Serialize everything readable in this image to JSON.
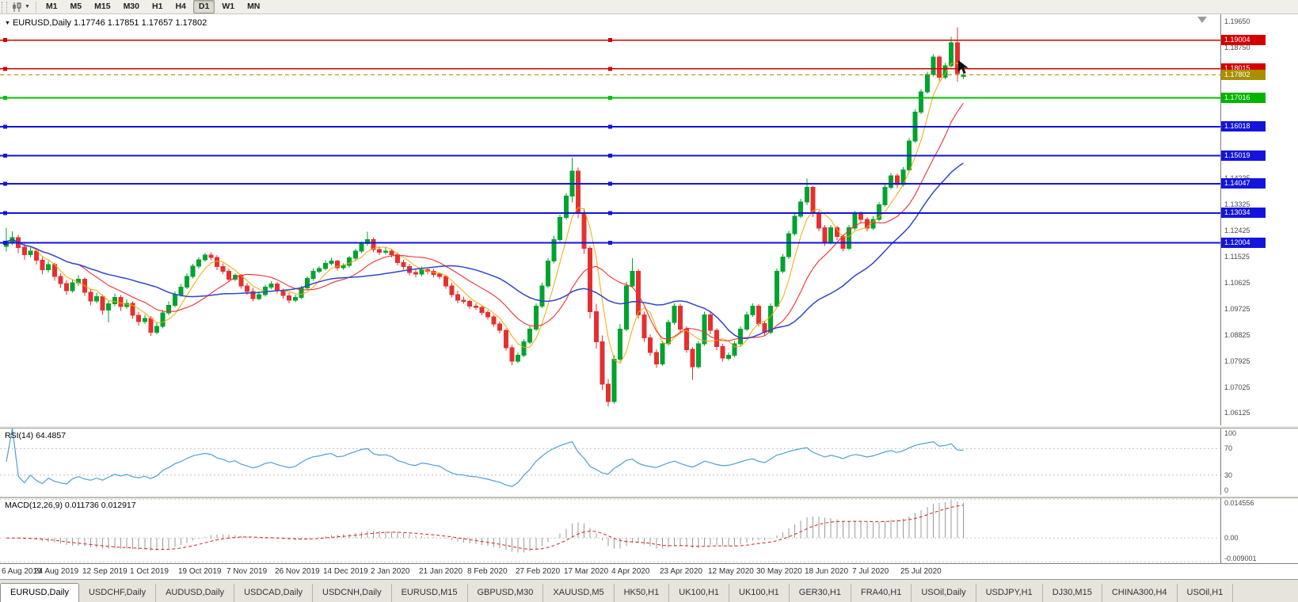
{
  "toolbar": {
    "timeframes": [
      "M1",
      "M5",
      "M15",
      "M30",
      "H1",
      "H4",
      "D1",
      "W1",
      "MN"
    ],
    "active_timeframe": "D1"
  },
  "chart": {
    "title": "EURUSD,Daily",
    "ohlc_readout": "1.17746 1.17851 1.17657 1.17802",
    "open": "1.17746",
    "high": "1.17851",
    "low": "1.17657",
    "close": "1.17802"
  },
  "colors": {
    "candle_up": "#00A32E",
    "candle_down": "#E53030",
    "ma_fast": "#F5A800",
    "ma_mid": "#F03030",
    "ma_slow": "#2E46C8",
    "rsi_line": "#4E9FD6",
    "macd_bars": "#9B9B9B",
    "macd_signal": "#D02020"
  },
  "price_scale": {
    "gray_ticks": [
      {
        "label": "1.19650",
        "value": 1.1965
      },
      {
        "label": "1.18750",
        "value": 1.1875
      },
      {
        "label": "1.14235",
        "value": 1.14235
      },
      {
        "label": "1.13325",
        "value": 1.13325
      },
      {
        "label": "1.12425",
        "value": 1.12425
      },
      {
        "label": "1.11525",
        "value": 1.11525
      },
      {
        "label": "1.10625",
        "value": 1.10625
      },
      {
        "label": "1.09725",
        "value": 1.09725
      },
      {
        "label": "1.08825",
        "value": 1.08825
      },
      {
        "label": "1.07925",
        "value": 1.07925
      },
      {
        "label": "1.07025",
        "value": 1.07025
      },
      {
        "label": "1.06125",
        "value": 1.06125
      }
    ]
  },
  "levels": [
    {
      "label": "1.19004",
      "value": 1.19004,
      "color": "#D40000",
      "box": "#D40000",
      "width": 1.4,
      "dashed": false
    },
    {
      "label": "1.18015",
      "value": 1.18015,
      "color": "#D40000",
      "box": "#D40000",
      "width": 1.4,
      "dashed": false
    },
    {
      "label": "1.17802",
      "value": 1.17802,
      "color": "#A89000",
      "box": "#A89000",
      "width": 1,
      "dashed": true
    },
    {
      "label": "1.17016",
      "value": 1.17016,
      "color": "#00C000",
      "box": "#00B400",
      "width": 1.8,
      "dashed": false
    },
    {
      "label": "1.16018",
      "value": 1.16018,
      "color": "#1414DC",
      "box": "#1414DC",
      "width": 1.8,
      "dashed": false
    },
    {
      "label": "1.15019",
      "value": 1.15019,
      "color": "#1414DC",
      "box": "#1414DC",
      "width": 1.8,
      "dashed": false
    },
    {
      "label": "1.14047",
      "value": 1.14047,
      "color": "#1414DC",
      "box": "#1414DC",
      "width": 1.8,
      "dashed": false
    },
    {
      "label": "1.13034",
      "value": 1.13034,
      "color": "#1414DC",
      "box": "#1414DC",
      "width": 1.8,
      "dashed": false
    },
    {
      "label": "1.12004",
      "value": 1.12004,
      "color": "#1414DC",
      "box": "#1414DC",
      "width": 1.8,
      "dashed": false
    }
  ],
  "chart_data": {
    "type": "candlestick",
    "symbol": "EURUSD",
    "timeframe": "Daily",
    "price_range": [
      1.057,
      1.199
    ],
    "x_labels": [
      "6 Aug 2019",
      "24 Aug 2019",
      "12 Sep 2019",
      "1 Oct 2019",
      "19 Oct 2019",
      "7 Nov 2019",
      "26 Nov 2019",
      "14 Dec 2019",
      "2 Jan 2020",
      "21 Jan 2020",
      "8 Feb 2020",
      "27 Feb 2020",
      "17 Mar 2020",
      "4 Apr 2020",
      "23 Apr 2020",
      "12 May 2020",
      "30 May 2020",
      "18 Jun 2020",
      "7 Jul 2020",
      "25 Jul 2020"
    ],
    "x_label_step": 8,
    "overlays": [
      {
        "name": "ma-fast",
        "period": 5,
        "color": "#F5A800"
      },
      {
        "name": "ma-mid",
        "period": 13,
        "color": "#F03030"
      },
      {
        "name": "ma-slow",
        "period": 26,
        "color": "#2E46C8"
      }
    ],
    "candles": [
      [
        1.1188,
        1.1252,
        1.117,
        1.1205
      ],
      [
        1.1205,
        1.124,
        1.1192,
        1.1218
      ],
      [
        1.1218,
        1.1228,
        1.1165,
        1.1185
      ],
      [
        1.1185,
        1.1198,
        1.1142,
        1.116
      ],
      [
        1.116,
        1.1185,
        1.115,
        1.1172
      ],
      [
        1.1172,
        1.118,
        1.1125,
        1.114
      ],
      [
        1.114,
        1.1152,
        1.1092,
        1.1108
      ],
      [
        1.1108,
        1.1138,
        1.1098,
        1.1125
      ],
      [
        1.1125,
        1.1132,
        1.107,
        1.1085
      ],
      [
        1.1085,
        1.1095,
        1.1045,
        1.106
      ],
      [
        1.106,
        1.1072,
        1.1022,
        1.1035
      ],
      [
        1.1035,
        1.1075,
        1.1028,
        1.1062
      ],
      [
        1.1062,
        1.1088,
        1.1052,
        1.1075
      ],
      [
        1.1075,
        1.1082,
        1.1018,
        1.103
      ],
      [
        1.103,
        1.1042,
        1.0985,
        1.1
      ],
      [
        1.1,
        1.1028,
        1.0992,
        1.1015
      ],
      [
        1.1015,
        1.1022,
        1.0952,
        1.0968
      ],
      [
        1.0968,
        1.1002,
        1.0926,
        1.099
      ],
      [
        1.099,
        1.1025,
        1.0982,
        1.1012
      ],
      [
        1.1012,
        1.102,
        1.0965,
        1.098
      ],
      [
        1.098,
        1.1005,
        1.0972,
        1.0992
      ],
      [
        1.0992,
        1.0998,
        1.0938,
        1.095
      ],
      [
        1.095,
        1.0962,
        1.0915,
        1.0928
      ],
      [
        1.0928,
        1.0952,
        1.092,
        1.094
      ],
      [
        1.094,
        1.0948,
        1.0879,
        1.0892
      ],
      [
        1.0892,
        1.0925,
        1.0885,
        1.0912
      ],
      [
        1.0912,
        1.0968,
        1.0905,
        1.0958
      ],
      [
        1.0958,
        1.0998,
        1.095,
        1.0985
      ],
      [
        1.0985,
        1.1032,
        1.0978,
        1.1022
      ],
      [
        1.1022,
        1.1058,
        1.1015,
        1.1048
      ],
      [
        1.1048,
        1.1095,
        1.104,
        1.1085
      ],
      [
        1.1085,
        1.1128,
        1.1078,
        1.112
      ],
      [
        1.112,
        1.1152,
        1.1112,
        1.1142
      ],
      [
        1.1142,
        1.1165,
        1.1135,
        1.1158
      ],
      [
        1.1158,
        1.1168,
        1.114,
        1.115
      ],
      [
        1.115,
        1.1158,
        1.1106,
        1.1118
      ],
      [
        1.1118,
        1.113,
        1.1092,
        1.1102
      ],
      [
        1.1102,
        1.1112,
        1.1065,
        1.1075
      ],
      [
        1.1075,
        1.1095,
        1.1068,
        1.1088
      ],
      [
        1.1088,
        1.1092,
        1.1042,
        1.1052
      ],
      [
        1.1052,
        1.1062,
        1.1022,
        1.1032
      ],
      [
        1.1032,
        1.1045,
        1.0998,
        1.1008
      ],
      [
        1.1008,
        1.1032,
        1.1002,
        1.1022
      ],
      [
        1.1022,
        1.1055,
        1.1015,
        1.1048
      ],
      [
        1.1048,
        1.1068,
        1.104,
        1.1058
      ],
      [
        1.1058,
        1.1065,
        1.1025,
        1.1035
      ],
      [
        1.1035,
        1.1042,
        1.1008,
        1.1018
      ],
      [
        1.1018,
        1.1028,
        1.0992,
        1.1002
      ],
      [
        1.1002,
        1.1022,
        1.0995,
        1.1012
      ],
      [
        1.1012,
        1.1052,
        1.1005,
        1.1045
      ],
      [
        1.1045,
        1.1085,
        1.1038,
        1.1078
      ],
      [
        1.1078,
        1.1112,
        1.107,
        1.1102
      ],
      [
        1.1102,
        1.112,
        1.1095,
        1.1112
      ],
      [
        1.1112,
        1.114,
        1.1105,
        1.113
      ],
      [
        1.113,
        1.1148,
        1.1122,
        1.1138
      ],
      [
        1.1138,
        1.1142,
        1.1105,
        1.1115
      ],
      [
        1.1115,
        1.113,
        1.1108,
        1.1122
      ],
      [
        1.1122,
        1.1155,
        1.1115,
        1.1148
      ],
      [
        1.1148,
        1.118,
        1.114,
        1.1172
      ],
      [
        1.1172,
        1.1205,
        1.1165,
        1.1198
      ],
      [
        1.1198,
        1.1239,
        1.119,
        1.1212
      ],
      [
        1.1212,
        1.1218,
        1.1168,
        1.1178
      ],
      [
        1.1178,
        1.1188,
        1.1158,
        1.1168
      ],
      [
        1.1168,
        1.1185,
        1.116,
        1.1172
      ],
      [
        1.1172,
        1.118,
        1.115,
        1.116
      ],
      [
        1.116,
        1.1168,
        1.1122,
        1.1132
      ],
      [
        1.1132,
        1.1142,
        1.1108,
        1.1118
      ],
      [
        1.1118,
        1.1128,
        1.1088,
        1.1098
      ],
      [
        1.1098,
        1.1108,
        1.1082,
        1.1092
      ],
      [
        1.1092,
        1.1118,
        1.1085,
        1.1108
      ],
      [
        1.1108,
        1.1115,
        1.1092,
        1.1102
      ],
      [
        1.1102,
        1.111,
        1.1082,
        1.1092
      ],
      [
        1.1092,
        1.1098,
        1.1075,
        1.1085
      ],
      [
        1.1085,
        1.109,
        1.1042,
        1.1052
      ],
      [
        1.1052,
        1.1062,
        1.1012,
        1.1022
      ],
      [
        1.1022,
        1.1035,
        1.0992,
        1.1002
      ],
      [
        1.1002,
        1.1015,
        1.099,
        1.0998
      ],
      [
        1.0998,
        1.1005,
        1.0972,
        1.0982
      ],
      [
        1.0982,
        1.0992,
        1.0968,
        1.0978
      ],
      [
        1.0978,
        1.0985,
        1.095,
        1.096
      ],
      [
        1.096,
        1.0968,
        1.0935,
        1.0945
      ],
      [
        1.0945,
        1.0952,
        1.091,
        1.092
      ],
      [
        1.092,
        1.093,
        1.0888,
        1.0898
      ],
      [
        1.0898,
        1.0905,
        1.0828,
        1.0838
      ],
      [
        1.0838,
        1.0848,
        1.0778,
        1.0792
      ],
      [
        1.0792,
        1.0822,
        1.0785,
        1.0812
      ],
      [
        1.0812,
        1.0868,
        1.0805,
        1.0858
      ],
      [
        1.0858,
        1.0912,
        1.085,
        1.0902
      ],
      [
        1.0902,
        1.0992,
        1.0895,
        1.0982
      ],
      [
        1.0982,
        1.1062,
        1.0975,
        1.1052
      ],
      [
        1.1052,
        1.1148,
        1.1045,
        1.1138
      ],
      [
        1.1138,
        1.1225,
        1.113,
        1.1212
      ],
      [
        1.1212,
        1.1298,
        1.1205,
        1.1288
      ],
      [
        1.1288,
        1.1372,
        1.128,
        1.1362
      ],
      [
        1.1362,
        1.1495,
        1.134,
        1.1448
      ],
      [
        1.1448,
        1.146,
        1.1285,
        1.1302
      ],
      [
        1.1302,
        1.132,
        1.1162,
        1.1182
      ],
      [
        1.1182,
        1.119,
        1.094,
        1.0962
      ],
      [
        1.0962,
        1.099,
        1.0835,
        1.0858
      ],
      [
        1.0858,
        1.088,
        1.0692,
        1.0712
      ],
      [
        1.0712,
        1.073,
        1.0636,
        1.0652
      ],
      [
        1.0652,
        1.0812,
        1.0645,
        1.0798
      ],
      [
        1.0798,
        1.092,
        1.079,
        1.0902
      ],
      [
        1.0902,
        1.1065,
        1.0895,
        1.1052
      ],
      [
        1.1052,
        1.1147,
        1.1045,
        1.1102
      ],
      [
        1.1102,
        1.111,
        1.0938,
        1.0952
      ],
      [
        1.0952,
        1.0962,
        1.0858,
        1.0872
      ],
      [
        1.0872,
        1.0885,
        1.081,
        1.0822
      ],
      [
        1.0822,
        1.0832,
        1.0768,
        1.0782
      ],
      [
        1.0782,
        1.0862,
        1.0775,
        1.0852
      ],
      [
        1.0852,
        1.0935,
        1.0845,
        1.0925
      ],
      [
        1.0925,
        1.0992,
        1.0918,
        1.0982
      ],
      [
        1.0982,
        1.099,
        1.0888,
        1.0902
      ],
      [
        1.0902,
        1.0912,
        1.082,
        1.0832
      ],
      [
        1.0832,
        1.084,
        1.0727,
        1.0772
      ],
      [
        1.0772,
        1.0862,
        1.0765,
        1.0852
      ],
      [
        1.0852,
        1.0962,
        1.0845,
        1.0952
      ],
      [
        1.0952,
        1.096,
        1.0885,
        1.0898
      ],
      [
        1.0898,
        1.0905,
        1.083,
        1.0842
      ],
      [
        1.0842,
        1.0852,
        1.079,
        1.0802
      ],
      [
        1.0802,
        1.0822,
        1.0795,
        1.0812
      ],
      [
        1.0812,
        1.0862,
        1.0805,
        1.0852
      ],
      [
        1.0852,
        1.0912,
        1.0845,
        1.0902
      ],
      [
        1.0902,
        1.0962,
        1.0895,
        1.0952
      ],
      [
        1.0952,
        1.0992,
        1.0945,
        1.0982
      ],
      [
        1.0982,
        1.0988,
        1.091,
        1.0922
      ],
      [
        1.0922,
        1.093,
        1.088,
        1.0892
      ],
      [
        1.0892,
        1.0992,
        1.0885,
        1.0982
      ],
      [
        1.0982,
        1.1112,
        1.0975,
        1.1102
      ],
      [
        1.1102,
        1.1162,
        1.1095,
        1.1152
      ],
      [
        1.1152,
        1.1242,
        1.1145,
        1.1232
      ],
      [
        1.1232,
        1.1302,
        1.1225,
        1.1292
      ],
      [
        1.1292,
        1.1352,
        1.1285,
        1.1342
      ],
      [
        1.1342,
        1.1422,
        1.133,
        1.1392
      ],
      [
        1.1392,
        1.1398,
        1.129,
        1.1302
      ],
      [
        1.1302,
        1.1312,
        1.124,
        1.1252
      ],
      [
        1.1252,
        1.1262,
        1.119,
        1.1202
      ],
      [
        1.1202,
        1.1262,
        1.1195,
        1.1252
      ],
      [
        1.1252,
        1.126,
        1.121,
        1.1222
      ],
      [
        1.1222,
        1.123,
        1.117,
        1.1182
      ],
      [
        1.1182,
        1.1262,
        1.1175,
        1.1252
      ],
      [
        1.1252,
        1.1312,
        1.1245,
        1.1302
      ],
      [
        1.1302,
        1.131,
        1.127,
        1.1282
      ],
      [
        1.1282,
        1.129,
        1.124,
        1.1252
      ],
      [
        1.1252,
        1.1292,
        1.1245,
        1.1282
      ],
      [
        1.1282,
        1.1342,
        1.1275,
        1.1332
      ],
      [
        1.1332,
        1.1402,
        1.1325,
        1.1392
      ],
      [
        1.1392,
        1.1442,
        1.1385,
        1.1432
      ],
      [
        1.1432,
        1.144,
        1.139,
        1.1402
      ],
      [
        1.1402,
        1.1462,
        1.1395,
        1.1452
      ],
      [
        1.1452,
        1.1562,
        1.1445,
        1.1552
      ],
      [
        1.1552,
        1.1662,
        1.1545,
        1.1652
      ],
      [
        1.1652,
        1.1732,
        1.1645,
        1.1722
      ],
      [
        1.1722,
        1.1792,
        1.1715,
        1.1782
      ],
      [
        1.1782,
        1.1852,
        1.1775,
        1.1842
      ],
      [
        1.1842,
        1.1848,
        1.176,
        1.1772
      ],
      [
        1.1772,
        1.1822,
        1.1765,
        1.1812
      ],
      [
        1.1812,
        1.1912,
        1.1805,
        1.1892
      ],
      [
        1.1892,
        1.1945,
        1.1758,
        1.1785
      ],
      [
        1.17746,
        1.17851,
        1.17657,
        1.17802
      ]
    ]
  },
  "rsi": {
    "label": "RSI(14) 64.4857",
    "period": 14,
    "value": "64.4857",
    "scale": [
      {
        "label": "100",
        "value": 100
      },
      {
        "label": "70",
        "value": 70
      },
      {
        "label": "30",
        "value": 30
      },
      {
        "label": "0",
        "value": 0
      }
    ],
    "level_lines": [
      70,
      30
    ],
    "range": [
      0,
      100
    ]
  },
  "macd": {
    "label": "MACD(12,26,9) 0.011736 0.012917",
    "fast": 12,
    "slow": 26,
    "signal": 9,
    "main_value": "0.011736",
    "signal_value": "0.012917",
    "scale_top": "0.014556",
    "scale_zero": "0.00",
    "scale_bottom": "-0.009001",
    "range": [
      -0.0095,
      0.015
    ]
  },
  "tabs": {
    "active": "EURUSD,Daily",
    "items": [
      "EURUSD,Daily",
      "USDCHF,Daily",
      "AUDUSD,Daily",
      "USDCAD,Daily",
      "USDCNH,Daily",
      "EURUSD,M15",
      "GBPUSD,M30",
      "XAUUSD,M5",
      "HK50,H1",
      "UK100,H1",
      "UK100,H1",
      "GER30,H1",
      "FRA40,H1",
      "USOil,Daily",
      "USDJPY,H1",
      "DJ30,M15",
      "CHINA300,H4",
      "USOil,H1"
    ]
  }
}
